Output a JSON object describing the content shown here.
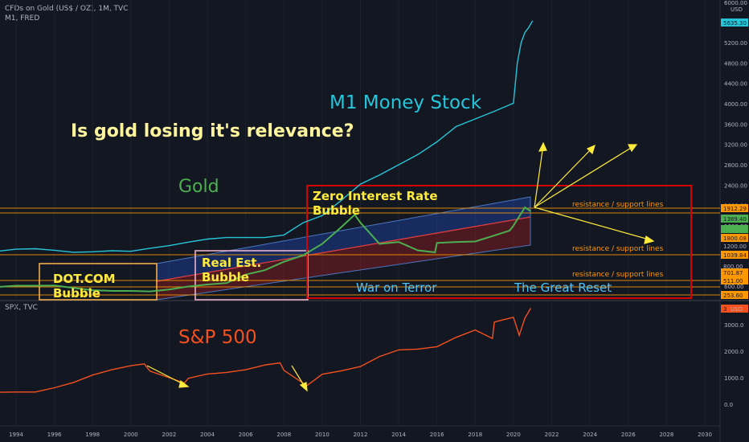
{
  "header": {
    "gold_symbol": "CFDs on Gold (US$ / OZ), 1M, TVC",
    "m1_symbol": "M1, FRED",
    "spx_symbol": "SPX, TVC",
    "currency_top": "USD",
    "currency_bottom": "USD",
    "top_scale_value": "6000.00"
  },
  "colors": {
    "background": "#131722",
    "gold": "#4caf50",
    "m1": "#26c6da",
    "spx": "#f4511e",
    "support": "#ff9800",
    "yellow": "#ffeb3b",
    "red_box": "#d50000"
  },
  "annotations": {
    "title_question": "Is gold losing it's relevance?",
    "m1_label": "M1 Money Stock",
    "gold_label": "Gold",
    "sp500_label": "S&P 500",
    "dotcom": "DOT.COM\nBubble",
    "realestate": "Real Est.\nBubble",
    "zero_interest": "Zero Interest Rate\nBubble",
    "war_on_terror": "War on Terror",
    "great_reset": "The Great Reset",
    "support_label": "resistance / support lines"
  },
  "chart_data": [
    {
      "type": "line",
      "title": "CFDs on Gold (US$ / OZ), 1M, TVC",
      "x_ticks": [
        "1994",
        "1996",
        "1998",
        "2000",
        "2002",
        "2004",
        "2006",
        "2008",
        "2010",
        "2012",
        "2014",
        "2016",
        "2018",
        "2020",
        "2022",
        "2024",
        "2026",
        "2028",
        "2030"
      ],
      "y_ticks": [
        "600.00",
        "800.00",
        "1200.00",
        "1600.00",
        "2000.00",
        "2400.00",
        "2800.00",
        "3200.00",
        "3600.00",
        "4000.00",
        "4400.00",
        "4800.00",
        "5200.00",
        "5600.00"
      ],
      "xlim": [
        1993.5,
        2030.5
      ],
      "series": [
        {
          "name": "M1",
          "x": [
            1993,
            1994,
            1995,
            1996,
            1997,
            1998,
            1999,
            2000,
            2001,
            2002,
            2003,
            2004,
            2005,
            2006,
            2007,
            2008,
            2009,
            2010,
            2011,
            2012,
            2013,
            2014,
            2015,
            2016,
            2017,
            2018,
            2019,
            2020,
            2020.2,
            2020.4,
            2020.6,
            2020.8,
            2021.0
          ],
          "values": [
            1100,
            1140,
            1150,
            1120,
            1080,
            1090,
            1110,
            1100,
            1160,
            1210,
            1280,
            1340,
            1370,
            1370,
            1370,
            1420,
            1660,
            1800,
            2100,
            2420,
            2600,
            2800,
            3000,
            3250,
            3550,
            3700,
            3850,
            4010,
            4800,
            5200,
            5400,
            5500,
            5630
          ]
        },
        {
          "name": "Gold",
          "x": [
            1993,
            1994,
            1995,
            1996,
            1997,
            1998,
            1999,
            2000,
            2001,
            2002,
            2003,
            2004,
            2005,
            2006,
            2007,
            2008,
            2009,
            2010,
            2011,
            2011.7,
            2012,
            2013,
            2014,
            2015,
            2015.9,
            2016,
            2017,
            2018,
            2019,
            2019.8,
            2020,
            2020.6,
            2020.9
          ],
          "values": [
            360,
            385,
            385,
            390,
            340,
            295,
            280,
            280,
            270,
            310,
            370,
            410,
            440,
            610,
            700,
            870,
            1000,
            1230,
            1570,
            1820,
            1660,
            1230,
            1270,
            1100,
            1060,
            1250,
            1270,
            1280,
            1400,
            1500,
            1600,
            1970,
            1890
          ]
        },
        {
          "name": "S&P 500",
          "x": [
            1993,
            1994,
            1995,
            1996,
            1997,
            1998,
            1999,
            2000,
            2000.7,
            2001,
            2002,
            2002.8,
            2003,
            2004,
            2005,
            2006,
            2007,
            2007.8,
            2008,
            2009.2,
            2010,
            2011,
            2012,
            2013,
            2014,
            2015,
            2016,
            2017,
            2018,
            2018.9,
            2019,
            2020,
            2020.3,
            2020.6,
            2020.9
          ],
          "values": [
            450,
            460,
            460,
            620,
            820,
            1100,
            1300,
            1450,
            1520,
            1250,
            1000,
            800,
            980,
            1140,
            1200,
            1300,
            1480,
            1560,
            1280,
            700,
            1130,
            1260,
            1420,
            1800,
            2050,
            2080,
            2170,
            2520,
            2800,
            2480,
            3100,
            3280,
            2600,
            3250,
            3620
          ]
        }
      ],
      "price_tags": [
        "5635.30",
        "1912.29",
        "1389.40",
        "1800.08",
        "1200.00",
        "1039.84",
        "800.00",
        "701.87",
        "511.00",
        "253.60"
      ],
      "bottom_ticks": [
        "3000.0",
        "2000.0",
        "1000.0",
        "0.0"
      ],
      "spx_last_tag": "3"
    }
  ]
}
